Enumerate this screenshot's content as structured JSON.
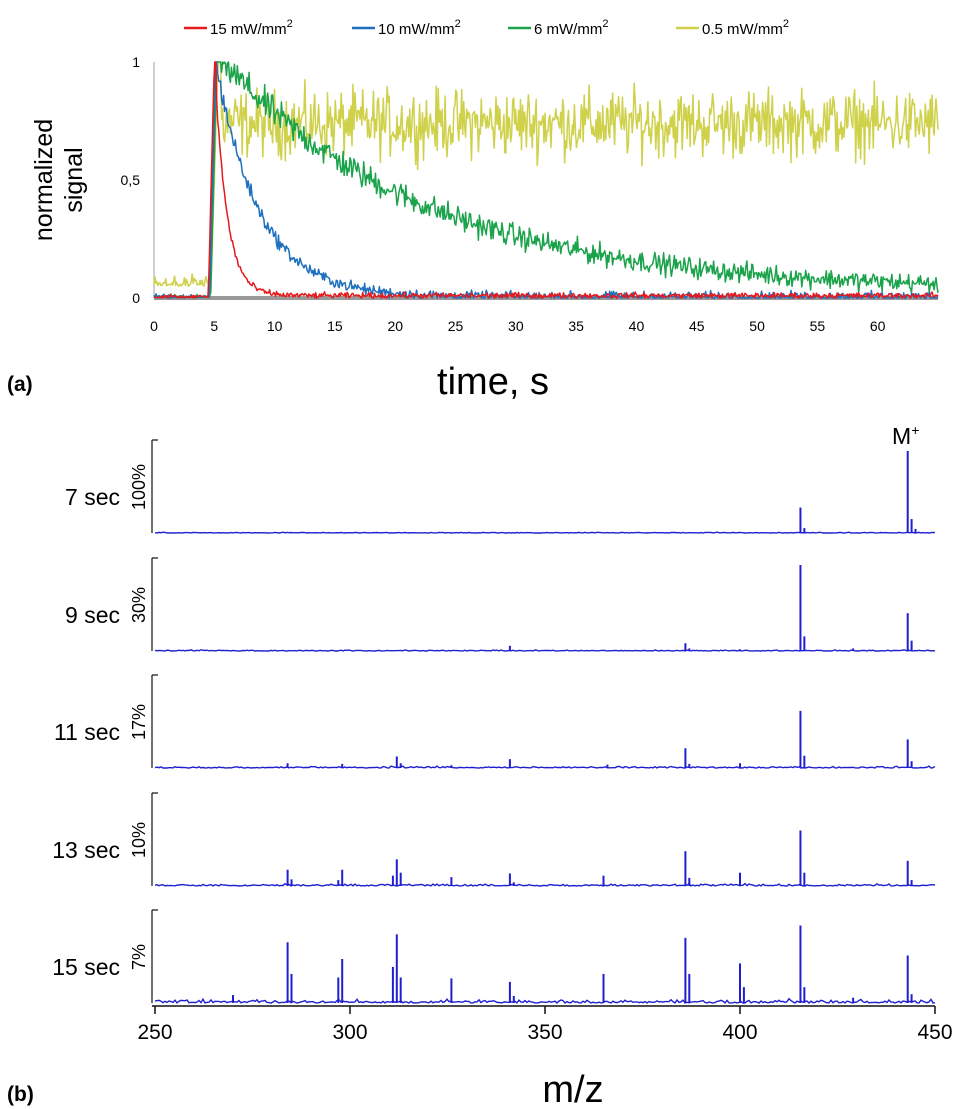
{
  "panel_a_label": "(a)",
  "panel_b_label": "(b)",
  "chart_data": [
    {
      "type": "line",
      "panel": "(a)",
      "xlabel": "time, s",
      "ylabel_lines": [
        "normalized",
        "signal"
      ],
      "xlim": [
        0,
        65
      ],
      "ylim": [
        0,
        1
      ],
      "xticks": [
        0,
        5,
        10,
        15,
        20,
        25,
        30,
        35,
        40,
        45,
        50,
        55,
        60
      ],
      "yticks": [
        {
          "value": 0,
          "label": "0"
        },
        {
          "value": 0.5,
          "label": "0,5"
        },
        {
          "value": 1,
          "label": "1"
        }
      ],
      "legend_position": "top",
      "series": [
        {
          "name": "15 mW/mm",
          "sup": "2",
          "color": "#e8191b",
          "onset": 4.5,
          "peak": 5.0,
          "tau": 1.0,
          "baseline": 0.01,
          "noise": 0.02
        },
        {
          "name": "10 mW/mm",
          "sup": "2",
          "color": "#1f6fbf",
          "onset": 4.6,
          "peak": 5.1,
          "tau": 3.6,
          "baseline": 0.005,
          "noise": 0.035
        },
        {
          "name": "6 mW/mm",
          "sup": "2",
          "color": "#1aa34a",
          "onset": 4.7,
          "peak": 5.2,
          "tau": 17.0,
          "baseline": 0.03,
          "noise": 0.06
        },
        {
          "name": "0.5 mW/mm",
          "sup": "2",
          "color": "#cfd14b",
          "onset": 4.7,
          "peak": 5.3,
          "tau": null,
          "plateau": 0.74,
          "pre_level": 0.05,
          "noise": 0.12
        }
      ]
    },
    {
      "type": "line",
      "panel": "(b)",
      "xlabel": "m/z",
      "xlim": [
        250,
        450
      ],
      "xticks": [
        250,
        300,
        350,
        400,
        450
      ],
      "peak_label": {
        "text": "M",
        "sup": "+",
        "mz": 443
      },
      "color": "#1f1fd0",
      "spectra": [
        {
          "label": "7 sec",
          "scale": "100%",
          "peaks": [
            [
              415.5,
              0.31
            ],
            [
              416.5,
              0.06
            ],
            [
              443,
              1.0
            ],
            [
              444,
              0.17
            ],
            [
              445,
              0.05
            ]
          ]
        },
        {
          "label": "9 sec",
          "scale": "30%",
          "peaks": [
            [
              341,
              0.06
            ],
            [
              386,
              0.09
            ],
            [
              387,
              0.03
            ],
            [
              400,
              0.02
            ],
            [
              415.5,
              1.0
            ],
            [
              416.5,
              0.17
            ],
            [
              429,
              0.03
            ],
            [
              443,
              0.44
            ],
            [
              444,
              0.12
            ]
          ]
        },
        {
          "label": "11 sec",
          "scale": "17%",
          "peaks": [
            [
              284,
              0.07
            ],
            [
              298,
              0.06
            ],
            [
              312,
              0.17
            ],
            [
              313,
              0.07
            ],
            [
              326,
              0.04
            ],
            [
              341,
              0.13
            ],
            [
              366,
              0.05
            ],
            [
              386,
              0.29
            ],
            [
              387,
              0.06
            ],
            [
              400,
              0.07
            ],
            [
              415.5,
              0.84
            ],
            [
              416.5,
              0.18
            ],
            [
              443,
              0.42
            ],
            [
              444,
              0.1
            ]
          ]
        },
        {
          "label": "13 sec",
          "scale": "10%",
          "peaks": [
            [
              284,
              0.22
            ],
            [
              285,
              0.09
            ],
            [
              297,
              0.08
            ],
            [
              298,
              0.22
            ],
            [
              311,
              0.14
            ],
            [
              312,
              0.36
            ],
            [
              313,
              0.18
            ],
            [
              326,
              0.12
            ],
            [
              341,
              0.17
            ],
            [
              342,
              0.05
            ],
            [
              365,
              0.14
            ],
            [
              386,
              0.47
            ],
            [
              387,
              0.11
            ],
            [
              400,
              0.18
            ],
            [
              415.5,
              0.75
            ],
            [
              416.5,
              0.18
            ],
            [
              443,
              0.34
            ],
            [
              444,
              0.08
            ]
          ]
        },
        {
          "label": "15 sec",
          "scale": "7%",
          "peaks": [
            [
              270,
              0.09
            ],
            [
              284,
              0.69
            ],
            [
              285,
              0.33
            ],
            [
              297,
              0.29
            ],
            [
              298,
              0.5
            ],
            [
              311,
              0.41
            ],
            [
              312,
              0.78
            ],
            [
              313,
              0.29
            ],
            [
              326,
              0.28
            ],
            [
              341,
              0.24
            ],
            [
              342,
              0.08
            ],
            [
              365,
              0.33
            ],
            [
              386,
              0.74
            ],
            [
              387,
              0.33
            ],
            [
              400,
              0.45
            ],
            [
              401,
              0.18
            ],
            [
              415.5,
              0.88
            ],
            [
              416.5,
              0.18
            ],
            [
              429,
              0.06
            ],
            [
              443,
              0.54
            ],
            [
              444,
              0.1
            ]
          ]
        }
      ]
    }
  ]
}
